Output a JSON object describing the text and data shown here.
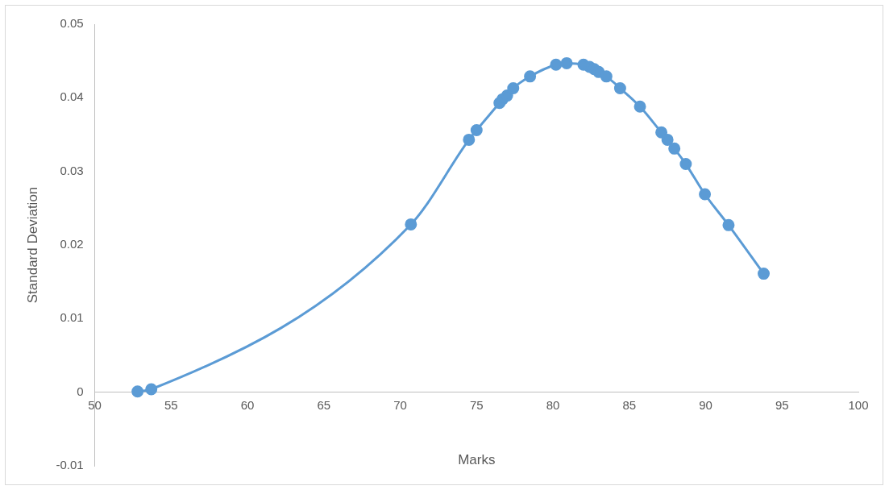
{
  "chart_data": {
    "type": "line",
    "xlabel": "Marks",
    "ylabel": "Standard Deviation",
    "x": [
      52.8,
      53.7,
      70.7,
      74.5,
      75.0,
      76.5,
      76.7,
      77.0,
      77.4,
      78.5,
      80.2,
      80.9,
      82.0,
      82.4,
      82.7,
      83.0,
      83.5,
      84.4,
      85.7,
      87.1,
      87.5,
      87.95,
      88.7,
      89.95,
      91.5,
      93.8
    ],
    "series": [
      {
        "color": "#5b9bd5",
        "values": [
          0.0001,
          0.0004,
          0.0228,
          0.0343,
          0.0356,
          0.0393,
          0.0398,
          0.0403,
          0.0413,
          0.0429,
          0.0445,
          0.0447,
          0.0445,
          0.0442,
          0.0439,
          0.0435,
          0.0429,
          0.0413,
          0.0388,
          0.0353,
          0.0343,
          0.0331,
          0.031,
          0.0269,
          0.0227,
          0.0161
        ]
      }
    ],
    "xlim": [
      50,
      100
    ],
    "xticks": [
      50,
      55,
      60,
      65,
      70,
      75,
      80,
      85,
      90,
      95,
      100
    ],
    "ylim": [
      -0.01,
      0.05
    ],
    "yticks": [
      -0.01,
      0,
      0.01,
      0.02,
      0.03,
      0.04,
      0.05
    ],
    "grid": false,
    "legend": false,
    "marker": "circle",
    "line_style": "solid"
  }
}
